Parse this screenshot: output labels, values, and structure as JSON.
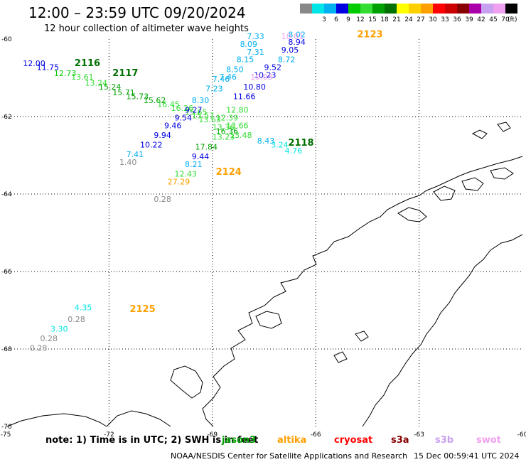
{
  "header": {
    "title": "12:00 – 23:59 UTC 09/20/2024",
    "subtitle": "12 hour collection of altimeter wave heights"
  },
  "legend": {
    "unit": "(ft)",
    "items": [
      {
        "label": "",
        "color": "#888888"
      },
      {
        "label": "3",
        "color": "#00e5e5"
      },
      {
        "label": "6",
        "color": "#00b0f0"
      },
      {
        "label": "9",
        "color": "#0000e0"
      },
      {
        "label": "12",
        "color": "#00cc00"
      },
      {
        "label": "15",
        "color": "#33dd33"
      },
      {
        "label": "18",
        "color": "#00a000"
      },
      {
        "label": "21",
        "color": "#007000"
      },
      {
        "label": "24",
        "color": "#ffff00"
      },
      {
        "label": "27",
        "color": "#ffd000"
      },
      {
        "label": "30",
        "color": "#ffa000"
      },
      {
        "label": "33",
        "color": "#ff0000"
      },
      {
        "label": "36",
        "color": "#cc0000"
      },
      {
        "label": "39",
        "color": "#880000"
      },
      {
        "label": "42",
        "color": "#aa00aa"
      },
      {
        "label": "45",
        "color": "#c8a0f0"
      },
      {
        "label": "70",
        "color": "#f0a0f0"
      },
      {
        "label": "",
        "color": "#000000"
      }
    ]
  },
  "axes": {
    "lon_ticks": [
      "-75",
      "-72",
      "-69",
      "-66",
      "-63",
      "-60"
    ],
    "lat_ticks": [
      "-60",
      "-62",
      "-64",
      "-66",
      "-68",
      "-70"
    ]
  },
  "map": {
    "lon_range": [
      -75,
      -60
    ],
    "lat_range": [
      -70,
      -60
    ],
    "land_color": "#000000"
  },
  "tracks": [
    {
      "label": "2116",
      "label_color": "#007000",
      "label_lon": -73.0,
      "label_lat": -60.7
    },
    {
      "label": "2117",
      "label_color": "#007000",
      "label_lon": -71.9,
      "label_lat": -60.95
    },
    {
      "label": "2118",
      "label_color": "#007000",
      "label_lon": -66.8,
      "label_lat": -62.75
    },
    {
      "label": "2123",
      "label_color": "#ffa000",
      "label_lon": -64.8,
      "label_lat": -59.95
    },
    {
      "label": "2124",
      "label_color": "#ffa000",
      "label_lon": -68.9,
      "label_lat": -63.5
    },
    {
      "label": "2125",
      "label_color": "#ffa000",
      "label_lon": -71.4,
      "label_lat": -67.05
    }
  ],
  "values": [
    {
      "t": "12.00",
      "c": "#0000e0",
      "lon": -74.5,
      "lat": -60.7
    },
    {
      "t": "11.75",
      "c": "#0000e0",
      "lon": -74.1,
      "lat": -60.8
    },
    {
      "t": "12.73",
      "c": "#00cc00",
      "lon": -73.6,
      "lat": -60.95
    },
    {
      "t": "13.61",
      "c": "#33dd33",
      "lon": -73.1,
      "lat": -61.05
    },
    {
      "t": "13.24",
      "c": "#33dd33",
      "lon": -72.7,
      "lat": -61.2
    },
    {
      "t": "15.24",
      "c": "#00a000",
      "lon": -72.3,
      "lat": -61.3
    },
    {
      "t": "15.71",
      "c": "#00a000",
      "lon": -71.9,
      "lat": -61.45
    },
    {
      "t": "15.73",
      "c": "#00a000",
      "lon": -71.5,
      "lat": -61.55
    },
    {
      "t": "15.62",
      "c": "#00a000",
      "lon": -71.0,
      "lat": -61.65
    },
    {
      "t": "16.45",
      "c": "#33dd33",
      "lon": -70.6,
      "lat": -61.75
    },
    {
      "t": "16.26",
      "c": "#33dd33",
      "lon": -70.2,
      "lat": -61.85
    },
    {
      "t": "15.65",
      "c": "#33dd33",
      "lon": -69.8,
      "lat": -61.95
    },
    {
      "t": "15.57",
      "c": "#33dd33",
      "lon": -69.6,
      "lat": -62.05
    },
    {
      "t": "7.33",
      "c": "#00b0f0",
      "lon": -68.0,
      "lat": -60.0
    },
    {
      "t": "8.09",
      "c": "#00b0f0",
      "lon": -68.2,
      "lat": -60.2
    },
    {
      "t": "7.31",
      "c": "#00b0f0",
      "lon": -68.0,
      "lat": -60.4
    },
    {
      "t": "8.15",
      "c": "#00b0f0",
      "lon": -68.3,
      "lat": -60.6
    },
    {
      "t": "8.50",
      "c": "#00b0f0",
      "lon": -68.6,
      "lat": -60.85
    },
    {
      "t": "7.46",
      "c": "#00b0f0",
      "lon": -68.8,
      "lat": -61.05
    },
    {
      "t": "7.46",
      "c": "#00b0f0",
      "lon": -69.0,
      "lat": -61.1
    },
    {
      "t": "7.23",
      "c": "#00b0f0",
      "lon": -69.2,
      "lat": -61.35
    },
    {
      "t": "8.30",
      "c": "#00b0f0",
      "lon": -69.6,
      "lat": -61.65
    },
    {
      "t": "9.27",
      "c": "#0000e0",
      "lon": -69.8,
      "lat": -61.9
    },
    {
      "t": "9.54",
      "c": "#0000e0",
      "lon": -70.1,
      "lat": -62.1
    },
    {
      "t": "9.46",
      "c": "#0000e0",
      "lon": -70.4,
      "lat": -62.3
    },
    {
      "t": "9.94",
      "c": "#0000e0",
      "lon": -70.7,
      "lat": -62.55
    },
    {
      "t": "10.22",
      "c": "#0000e0",
      "lon": -71.1,
      "lat": -62.8
    },
    {
      "t": "7.41",
      "c": "#00b0f0",
      "lon": -71.5,
      "lat": -63.05
    },
    {
      "t": "1.40",
      "c": "#888888",
      "lon": -71.7,
      "lat": -63.25
    },
    {
      "t": "8.02",
      "c": "#00b0f0",
      "lon": -66.8,
      "lat": -59.95
    },
    {
      "t": "10.01",
      "c": "#f0a0f0",
      "lon": -67.0,
      "lat": -60.0
    },
    {
      "t": "8.94",
      "c": "#0000e0",
      "lon": -66.8,
      "lat": -60.15
    },
    {
      "t": "9.05",
      "c": "#0000e0",
      "lon": -67.0,
      "lat": -60.35
    },
    {
      "t": "8.72",
      "c": "#00b0f0",
      "lon": -67.1,
      "lat": -60.6
    },
    {
      "t": "9.52",
      "c": "#0000e0",
      "lon": -67.5,
      "lat": -60.8
    },
    {
      "t": "10.23",
      "c": "#0000e0",
      "lon": -67.8,
      "lat": -61.0
    },
    {
      "t": "10.03",
      "c": "#f0a0f0",
      "lon": -67.9,
      "lat": -61.05
    },
    {
      "t": "10.80",
      "c": "#0000e0",
      "lon": -68.1,
      "lat": -61.3
    },
    {
      "t": "11.66",
      "c": "#0000e0",
      "lon": -68.4,
      "lat": -61.55
    },
    {
      "t": "12.80",
      "c": "#33dd33",
      "lon": -68.6,
      "lat": -61.9
    },
    {
      "t": "12.39",
      "c": "#33dd33",
      "lon": -68.9,
      "lat": -62.1
    },
    {
      "t": "13.63",
      "c": "#33dd33",
      "lon": -69.4,
      "lat": -62.15
    },
    {
      "t": "13.36",
      "c": "#33dd33",
      "lon": -69.0,
      "lat": -62.35
    },
    {
      "t": "13.66",
      "c": "#33dd33",
      "lon": -68.6,
      "lat": -62.3
    },
    {
      "t": "16.36",
      "c": "#00a000",
      "lon": -68.9,
      "lat": -62.45
    },
    {
      "t": "13.23",
      "c": "#33dd33",
      "lon": -69.0,
      "lat": -62.6
    },
    {
      "t": "13.48",
      "c": "#33dd33",
      "lon": -68.5,
      "lat": -62.55
    },
    {
      "t": "8.43",
      "c": "#00b0f0",
      "lon": -67.7,
      "lat": -62.7
    },
    {
      "t": "3.24",
      "c": "#00e5e5",
      "lon": -67.3,
      "lat": -62.8
    },
    {
      "t": "4.76",
      "c": "#00e5e5",
      "lon": -66.9,
      "lat": -62.95
    },
    {
      "t": "17.84",
      "c": "#00a000",
      "lon": -69.5,
      "lat": -62.85
    },
    {
      "t": "9.44",
      "c": "#0000e0",
      "lon": -69.6,
      "lat": -63.1
    },
    {
      "t": "8.21",
      "c": "#00b0f0",
      "lon": -69.8,
      "lat": -63.3
    },
    {
      "t": "12.43",
      "c": "#33dd33",
      "lon": -70.1,
      "lat": -63.55
    },
    {
      "t": "27.29",
      "c": "#ffa000",
      "lon": -70.3,
      "lat": -63.75
    },
    {
      "t": "0.28",
      "c": "#888888",
      "lon": -70.7,
      "lat": -64.2
    },
    {
      "t": "4.35",
      "c": "#00e5e5",
      "lon": -73.0,
      "lat": -67.0
    },
    {
      "t": "0.28",
      "c": "#888888",
      "lon": -73.2,
      "lat": -67.3
    },
    {
      "t": "3.30",
      "c": "#00e5e5",
      "lon": -73.7,
      "lat": -67.55
    },
    {
      "t": "0.28",
      "c": "#888888",
      "lon": -74.0,
      "lat": -67.8
    },
    {
      "t": "0.28",
      "c": "#888888",
      "lon": -74.3,
      "lat": -68.05
    }
  ],
  "note": {
    "text": "note: 1) Time is in UTC; 2) SWH is in feet",
    "missions": [
      {
        "name": "jason3",
        "color": "#00a000"
      },
      {
        "name": "altika",
        "color": "#ffa000"
      },
      {
        "name": "cryosat",
        "color": "#ff0000"
      },
      {
        "name": "s3a",
        "color": "#880000"
      },
      {
        "name": "s3b",
        "color": "#c8a0f0"
      },
      {
        "name": "swot",
        "color": "#f0a0f0"
      }
    ]
  },
  "footer": {
    "source": "NOAA/NESDIS Center for Satellite Applications and Research",
    "generated": "15 Dec 00:59:41 UTC 2024"
  }
}
